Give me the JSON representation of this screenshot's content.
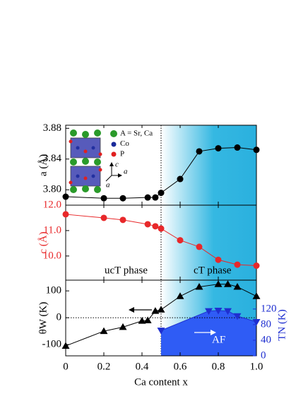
{
  "chart_data": [
    {
      "type": "scatter",
      "ylabel": "a (Å)",
      "ylabel_color": "#000000",
      "xlim": [
        0,
        1
      ],
      "ylim": [
        3.78,
        3.884
      ],
      "yticks": [
        {
          "value": 3.8,
          "label": "3.80"
        },
        {
          "value": 3.84,
          "label": "3.84"
        },
        {
          "value": 3.88,
          "label": "3.88"
        }
      ],
      "phase_boundary": 0.5,
      "legend_labels": [
        "A = Sr, Ca",
        "Co",
        "P"
      ],
      "series": [
        {
          "name": "a",
          "color": "#000000",
          "marker": "circle",
          "x": [
            0,
            0.2,
            0.3,
            0.43,
            0.47,
            0.5,
            0.6,
            0.7,
            0.8,
            0.9,
            1.0
          ],
          "values": [
            3.791,
            3.789,
            3.789,
            3.79,
            3.79,
            3.796,
            3.814,
            3.85,
            3.854,
            3.855,
            3.852
          ]
        }
      ]
    },
    {
      "type": "scatter",
      "ylabel": "c (Å)",
      "ylabel_color": "#e8282a",
      "xlim": [
        0,
        1
      ],
      "ylim": [
        9.05,
        12.0
      ],
      "yticks": [
        {
          "value": 10.0,
          "label": "10.0"
        },
        {
          "value": 11.0,
          "label": "11.0"
        },
        {
          "value": 12.0,
          "label": "12.0"
        }
      ],
      "annotations": [
        "ucT phase",
        "cT phase"
      ],
      "series": [
        {
          "name": "c",
          "color": "#e8282a",
          "marker": "circle",
          "x": [
            0,
            0.2,
            0.3,
            0.43,
            0.47,
            0.5,
            0.6,
            0.7,
            0.8,
            0.9,
            1.0
          ],
          "values": [
            11.64,
            11.5,
            11.42,
            11.25,
            11.17,
            11.08,
            10.62,
            10.36,
            9.85,
            9.66,
            9.62
          ]
        }
      ]
    },
    {
      "type": "scatter",
      "ylabel": "θW (K)",
      "ylabel_color": "#000000",
      "y2label": "TN (K)",
      "y2label_color": "#1f2fd0",
      "xlabel": "Ca content x",
      "xlim": [
        0,
        1
      ],
      "ylim": [
        -142,
        140
      ],
      "y2lim": [
        0,
        194
      ],
      "xticks": [
        0,
        0.2,
        0.4,
        0.6,
        0.8,
        {
          "value": 1.0,
          "label": "1.0"
        }
      ],
      "yticks": [
        -100,
        0,
        100
      ],
      "y2ticks": [
        0,
        40,
        80,
        120
      ],
      "zero_line": true,
      "annotations": [
        "AF"
      ],
      "series": [
        {
          "name": "θW",
          "color": "#000000",
          "marker": "triangle-up",
          "x": [
            0,
            0.2,
            0.3,
            0.4,
            0.43,
            0.47,
            0.5,
            0.6,
            0.7,
            0.8,
            0.85,
            0.9,
            1.0
          ],
          "values": [
            -105,
            -50,
            -35,
            -12,
            -10,
            25,
            30,
            80,
            115,
            125,
            125,
            115,
            80
          ]
        },
        {
          "name": "TN",
          "color": "#1f2fd0",
          "marker": "triangle-down",
          "axis": "y2",
          "area": true,
          "area_color": "#2f5cf5",
          "x": [
            0.5,
            0.75,
            0.8,
            0.85,
            0.9,
            1.0
          ],
          "values": [
            65,
            115,
            116,
            115,
            102,
            87
          ]
        }
      ]
    }
  ]
}
